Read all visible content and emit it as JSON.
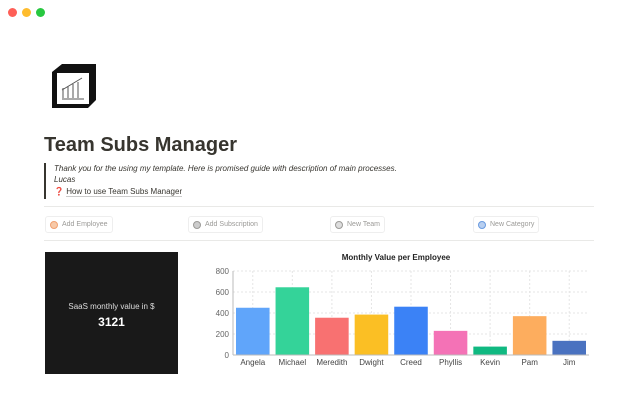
{
  "window": {
    "controls": [
      "close",
      "minimize",
      "maximize"
    ]
  },
  "page": {
    "icon": "notion-cube-chart-icon",
    "title": "Team Subs Manager"
  },
  "callout": {
    "line1": "Thank you for the using my template. Here is promised guide with description of main processes.",
    "line2": "Lucas",
    "link_icon": "❓",
    "link_label": "How to use Team Subs Manager"
  },
  "buttons": [
    {
      "label": "Add Employee",
      "color": "#f0a070"
    },
    {
      "label": "Add Subscription",
      "color": "#9b9a97"
    },
    {
      "label": "New Team",
      "color": "#9b9a97"
    },
    {
      "label": "New Category",
      "color": "#6a9be0"
    }
  ],
  "metric": {
    "label": "SaaS monthly value in $",
    "value": "3121"
  },
  "chart_data": {
    "type": "bar",
    "title": "Monthly Value per Employee",
    "categories": [
      "Angela",
      "Michael",
      "Meredith",
      "Dwight",
      "Creed",
      "Phyllis",
      "Kevin",
      "Pam",
      "Jim"
    ],
    "values": [
      450,
      645,
      355,
      385,
      460,
      230,
      80,
      370,
      135
    ],
    "colors": [
      "#60a5fa",
      "#34d399",
      "#f87171",
      "#fbbf24",
      "#3b82f6",
      "#f472b6",
      "#10b981",
      "#fdad5e",
      "#4a72c0"
    ],
    "ylim": [
      0,
      800
    ],
    "yticks": [
      "0",
      "200",
      "400",
      "600",
      "800"
    ],
    "grid": true,
    "legend": "none"
  }
}
